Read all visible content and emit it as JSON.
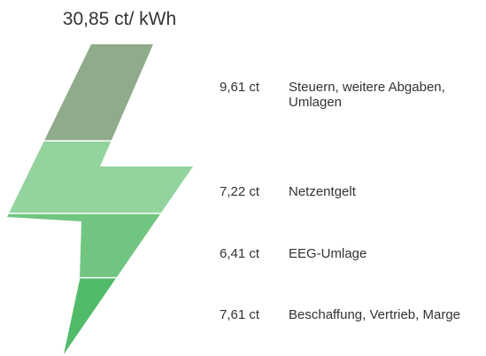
{
  "chart_data": {
    "type": "bolt",
    "title": "30,85 ct/ kWh",
    "categories": [
      "Steuern, weitere Abgaben, Umlagen",
      "Netzentgelt",
      "EEG-Umlage",
      "Beschaffung, Vertrieb, Marge"
    ],
    "values": [
      9.61,
      7.22,
      6.41,
      7.61
    ],
    "value_labels": [
      "9,61 ct",
      "7,22 ct",
      "6,41 ct",
      "7,61 ct"
    ],
    "colors": [
      "#90ab8b",
      "#93d39d",
      "#70c581",
      "#52bb6a"
    ]
  }
}
